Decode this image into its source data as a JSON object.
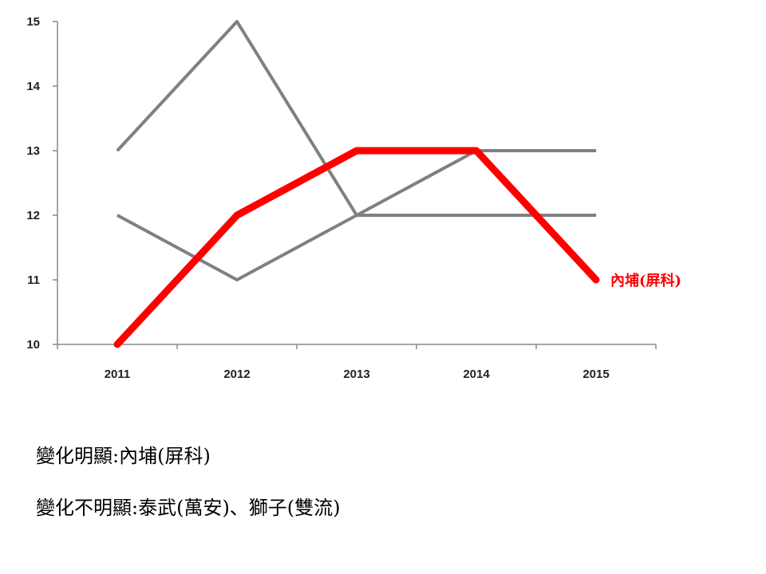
{
  "chart_data": {
    "type": "line",
    "x": [
      "2011",
      "2012",
      "2013",
      "2014",
      "2015"
    ],
    "ylim": [
      10,
      15
    ],
    "yticks": [
      "10",
      "11",
      "12",
      "13",
      "14",
      "15"
    ],
    "grid": false,
    "series": [
      {
        "name": "",
        "values": [
          13,
          15,
          12,
          12,
          12
        ],
        "color": "#808080",
        "emphasis": false
      },
      {
        "name": "",
        "values": [
          12,
          11,
          12,
          13,
          13
        ],
        "color": "#808080",
        "emphasis": false
      },
      {
        "name": "內埔(屏科)",
        "values": [
          10,
          12,
          13,
          13,
          11
        ],
        "color": "#ff0000",
        "emphasis": true
      }
    ]
  },
  "notes": {
    "line1": "變化明顯:內埔(屏科)",
    "line2": "變化不明顯:泰武(萬安)、獅子(雙流)"
  }
}
